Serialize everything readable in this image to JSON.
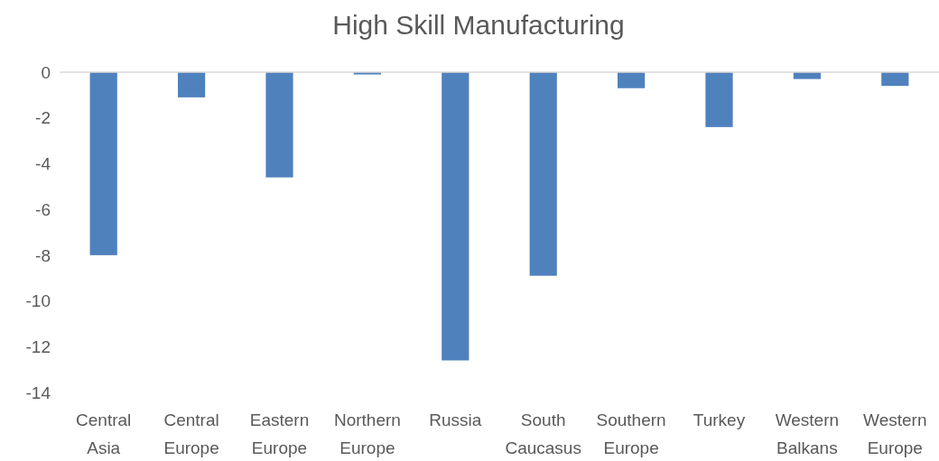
{
  "chart_data": {
    "type": "bar",
    "title": "High Skill Manufacturing",
    "categories": [
      "Central Asia",
      "Central Europe",
      "Eastern Europe",
      "Northern Europe",
      "Russia",
      "South Caucasus",
      "Southern Europe",
      "Turkey",
      "Western Balkans",
      "Western Europe"
    ],
    "values": [
      -8.0,
      -1.1,
      -4.6,
      -0.1,
      -12.6,
      -8.9,
      -0.7,
      -2.4,
      -0.3,
      -0.6
    ],
    "color": "#4f81bd",
    "ylim": [
      -14,
      0
    ],
    "yticks": [
      -14,
      -12,
      -10,
      -8,
      -6,
      -4,
      -2,
      0
    ],
    "grid": false
  }
}
